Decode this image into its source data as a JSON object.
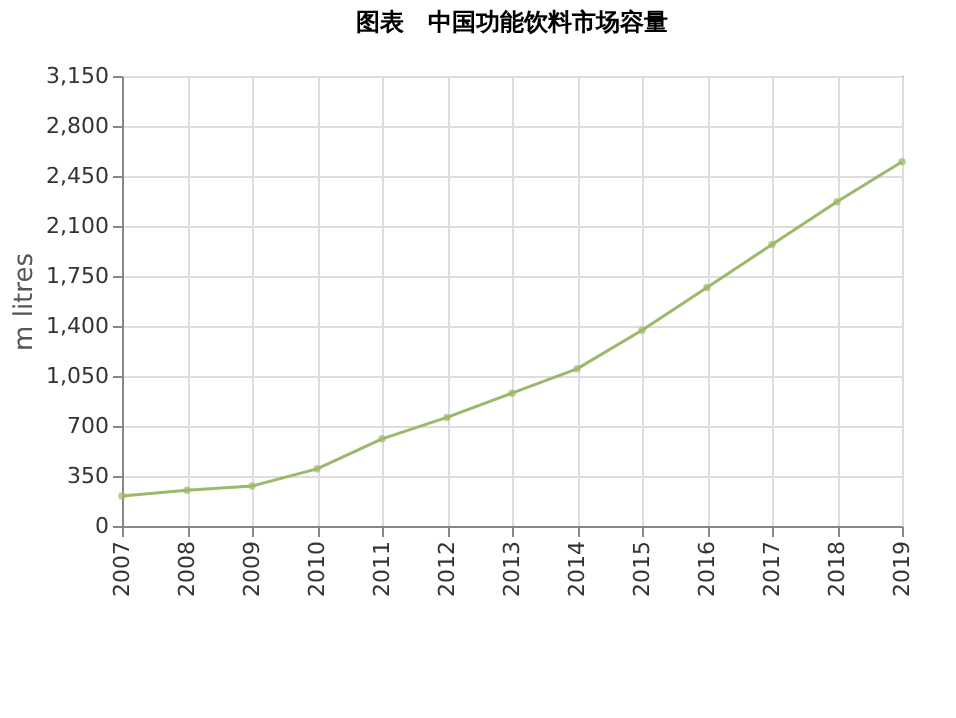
{
  "chart_data": {
    "type": "line",
    "title": "图表　中国功能饮料市场容量",
    "ylabel": "m litres",
    "categories": [
      "2007",
      "2008",
      "2009",
      "2010",
      "2011",
      "2012",
      "2013",
      "2014",
      "2015",
      "2016",
      "2017",
      "2018",
      "2019"
    ],
    "series": [
      {
        "color": "#9cb86a",
        "values": [
          210,
          250,
          280,
          400,
          610,
          760,
          930,
          1100,
          1370,
          1670,
          1970,
          2270,
          2550
        ]
      }
    ],
    "ylim": [
      0,
      3150
    ],
    "yticks": [
      {
        "value": 0,
        "label": "0"
      },
      {
        "value": 350,
        "label": "350"
      },
      {
        "value": 700,
        "label": "700"
      },
      {
        "value": 1050,
        "label": "1,050"
      },
      {
        "value": 1400,
        "label": "1,400"
      },
      {
        "value": 1750,
        "label": "1,750"
      },
      {
        "value": 2100,
        "label": "2,100"
      },
      {
        "value": 2450,
        "label": "2,450"
      },
      {
        "value": 2800,
        "label": "2,800"
      },
      {
        "value": 3150,
        "label": "3,150"
      }
    ],
    "grid": true,
    "marker": "circle",
    "line_style": "solid"
  }
}
